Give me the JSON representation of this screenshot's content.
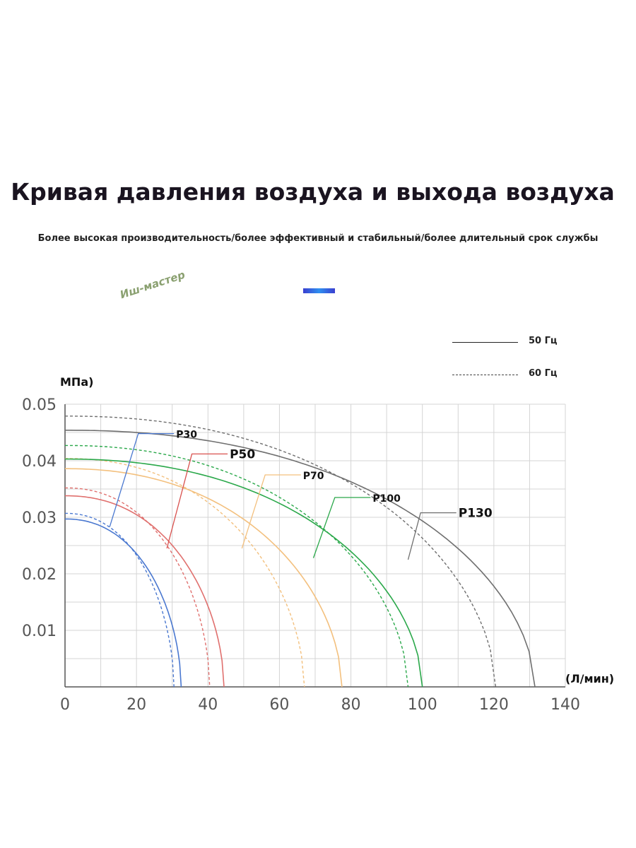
{
  "header": {
    "title": "Кривая давления воздуха и выхода воздуха",
    "subtitle": "Более высокая производительность/более эффективный и стабильный/более длительный срок службы",
    "watermark": "Иш-мастер"
  },
  "legend": {
    "solid_label": "50 Гц",
    "dashed_label": "60 Гц"
  },
  "chart_data": {
    "type": "line",
    "title": "",
    "ylabel": "МПа)",
    "xlabel": "(Л/мин)",
    "xlim": [
      0,
      140
    ],
    "ylim": [
      0,
      0.05
    ],
    "x_ticks": [
      "0",
      "20",
      "40",
      "60",
      "80",
      "100",
      "120",
      "140"
    ],
    "y_ticks": [
      "0.01",
      "0.02",
      "0.03",
      "0.04",
      "0.05"
    ],
    "grid": true,
    "series": [
      {
        "name": "P30",
        "color": "#4a78d0",
        "hz50": {
          "y0": 0.0297,
          "xmax": 32.5
        },
        "hz60": {
          "y0": 0.0307,
          "xmax": 30.5
        }
      },
      {
        "name": "P50",
        "color": "#e0706e",
        "hz50": {
          "y0": 0.0338,
          "xmax": 44.5
        },
        "hz60": {
          "y0": 0.0352,
          "xmax": 40.5
        }
      },
      {
        "name": "P70",
        "color": "#f3c07e",
        "hz50": {
          "y0": 0.0386,
          "xmax": 77.5
        },
        "hz60": {
          "y0": 0.0404,
          "xmax": 67.0
        }
      },
      {
        "name": "P100",
        "color": "#2aa84a",
        "hz50": {
          "y0": 0.0403,
          "xmax": 100.0
        },
        "hz60": {
          "y0": 0.0427,
          "xmax": 96.0
        }
      },
      {
        "name": "P130",
        "color": "#6f6f6f",
        "hz50": {
          "y0": 0.0454,
          "xmax": 131.5
        },
        "hz60": {
          "y0": 0.0479,
          "xmax": 120.5
        }
      }
    ],
    "labels": [
      {
        "text": "P30",
        "color": "#4a78d0",
        "point": [
          12.5,
          0.0283
        ],
        "elbow": [
          20.5,
          0.0448
        ],
        "end": [
          30.5,
          0.0448
        ]
      },
      {
        "text": "P50",
        "color": "#d9524f",
        "point": [
          28.5,
          0.0245
        ],
        "elbow": [
          35.5,
          0.0412
        ],
        "end": [
          45.5,
          0.0412
        ]
      },
      {
        "text": "P70",
        "color": "#f3c07e",
        "point": [
          49.5,
          0.0245
        ],
        "elbow": [
          56.0,
          0.0375
        ],
        "end": [
          66.0,
          0.0375
        ]
      },
      {
        "text": "P100",
        "color": "#2aa84a",
        "point": [
          69.5,
          0.0228
        ],
        "elbow": [
          75.5,
          0.0335
        ],
        "end": [
          85.5,
          0.0335
        ]
      },
      {
        "text": "P130",
        "color": "#6f6f6f",
        "point": [
          96.0,
          0.0225
        ],
        "elbow": [
          99.5,
          0.0308
        ],
        "end": [
          109.5,
          0.0308
        ]
      }
    ]
  }
}
